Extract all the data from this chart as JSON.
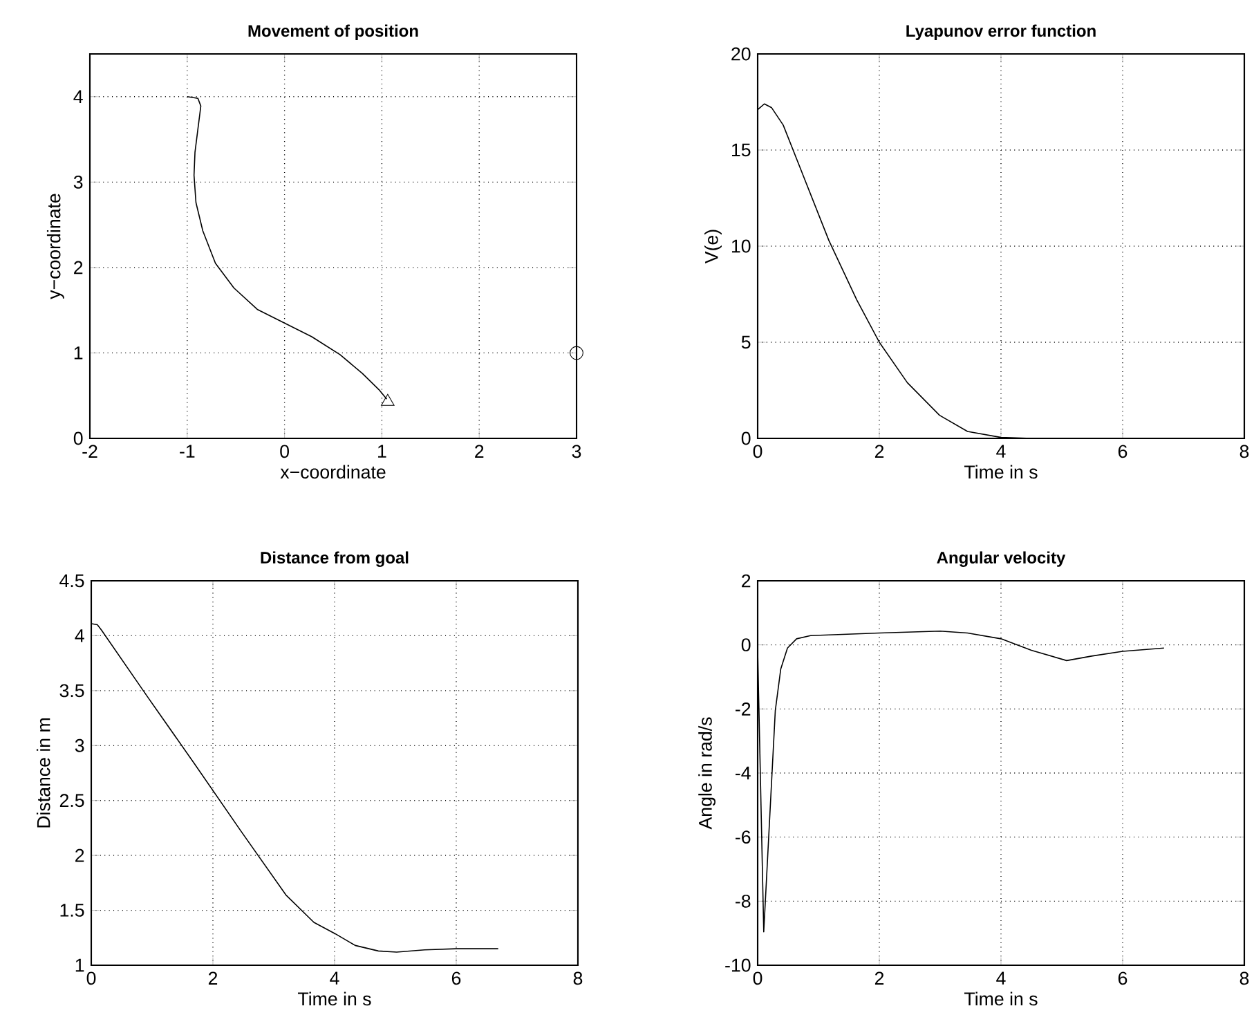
{
  "chart_data": [
    {
      "type": "line",
      "title": "Movement of position",
      "xlabel": "x−coordinate",
      "ylabel": "y−coordinate",
      "xlim": [
        -2,
        3
      ],
      "ylim": [
        0,
        4.5
      ],
      "xticks": [
        -2,
        -1,
        0,
        1,
        2,
        3
      ],
      "yticks": [
        0,
        1,
        2,
        3,
        4
      ],
      "grid": true,
      "series": [
        {
          "color": "#000000",
          "marker": "none",
          "x": [
            -1,
            -0.89,
            -0.86,
            -0.89,
            -0.92,
            -0.93,
            -0.91,
            -0.84,
            -0.71,
            -0.52,
            -0.28,
            0,
            0.28,
            0.57,
            0.8,
            0.97,
            1.05
          ],
          "values": [
            4,
            3.98,
            3.89,
            3.62,
            3.35,
            3.08,
            2.76,
            2.43,
            2.05,
            1.76,
            1.51,
            1.35,
            1.19,
            0.98,
            0.76,
            0.57,
            0.46
          ]
        },
        {
          "type": "scatter",
          "color": "#000000",
          "marker": "triangle",
          "x": [
            1.06
          ],
          "values": [
            0.43
          ]
        },
        {
          "type": "scatter",
          "color": "#000000",
          "marker": "circle",
          "x": [
            3
          ],
          "values": [
            1
          ]
        }
      ]
    },
    {
      "type": "line",
      "title": "Lyapunov error function",
      "xlabel": "Time in s",
      "ylabel": "V(e)",
      "xlim": [
        0,
        8
      ],
      "ylim": [
        0,
        20
      ],
      "xticks": [
        0,
        2,
        4,
        6,
        8
      ],
      "yticks": [
        0,
        5,
        10,
        15,
        20
      ],
      "grid": true,
      "series": [
        {
          "color": "#000000",
          "marker": "none",
          "x": [
            0,
            0.11,
            0.23,
            0.42,
            0.72,
            1.17,
            1.63,
            2,
            2.46,
            2.99,
            3.45,
            4,
            4.5,
            6.7
          ],
          "values": [
            17.1,
            17.4,
            17.2,
            16.3,
            13.9,
            10.3,
            7.2,
            5.0,
            2.9,
            1.2,
            0.36,
            0.05,
            0,
            0
          ]
        }
      ]
    },
    {
      "type": "line",
      "title": "Distance from goal",
      "xlabel": "Time in s",
      "ylabel": "Distance in m",
      "xlim": [
        0,
        8
      ],
      "ylim": [
        1,
        4.5
      ],
      "xticks": [
        0,
        2,
        4,
        6,
        8
      ],
      "yticks": [
        1,
        1.5,
        2,
        2.5,
        3,
        3.5,
        4,
        4.5
      ],
      "grid": true,
      "series": [
        {
          "color": "#000000",
          "marker": "none",
          "x": [
            0,
            0.1,
            0.17,
            0.93,
            1.69,
            2.45,
            3.2,
            3.66,
            4,
            4.34,
            4.72,
            5.02,
            5.48,
            6,
            6.69
          ],
          "values": [
            4.11,
            4.1,
            4.05,
            3.44,
            2.84,
            2.23,
            1.64,
            1.39,
            1.29,
            1.18,
            1.13,
            1.12,
            1.14,
            1.15,
            1.15
          ]
        }
      ]
    },
    {
      "type": "line",
      "title": "Angular velocity",
      "xlabel": "Time in s",
      "ylabel": "Angle in rad/s",
      "xlim": [
        0,
        8
      ],
      "ylim": [
        -10,
        2
      ],
      "xticks": [
        0,
        2,
        4,
        6,
        8
      ],
      "yticks": [
        -10,
        -8,
        -6,
        -4,
        -2,
        0,
        2
      ],
      "grid": true,
      "series": [
        {
          "color": "#000000",
          "marker": "none",
          "x": [
            0,
            0.1,
            0.29,
            0.38,
            0.49,
            0.64,
            0.87,
            2,
            3,
            3.45,
            4,
            4.5,
            5.08,
            5.49,
            6,
            6.68
          ],
          "values": [
            -0.17,
            -8.96,
            -2.05,
            -0.75,
            -0.1,
            0.19,
            0.29,
            0.37,
            0.43,
            0.37,
            0.19,
            -0.17,
            -0.49,
            -0.35,
            -0.2,
            -0.1
          ]
        }
      ]
    }
  ]
}
